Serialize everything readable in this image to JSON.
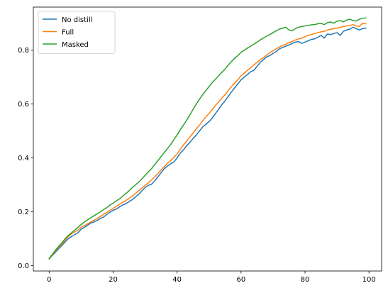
{
  "chart_data": {
    "type": "line",
    "title": "",
    "xlabel": "",
    "ylabel": "",
    "xlim": [
      -4.95,
      103.95
    ],
    "ylim": [
      -0.02,
      0.96
    ],
    "xticks": [
      0,
      20,
      40,
      60,
      80,
      100
    ],
    "xtick_labels": [
      "0",
      "20",
      "40",
      "60",
      "80",
      "100"
    ],
    "yticks": [
      0.0,
      0.2,
      0.4,
      0.6,
      0.8
    ],
    "ytick_labels": [
      "0.0",
      "0.2",
      "0.4",
      "0.6",
      "0.8"
    ],
    "grid": false,
    "legend": {
      "position": "top-left"
    },
    "x": [
      0,
      1,
      2,
      3,
      4,
      5,
      6,
      7,
      8,
      9,
      10,
      11,
      12,
      13,
      14,
      15,
      16,
      17,
      18,
      19,
      20,
      21,
      22,
      23,
      24,
      25,
      26,
      27,
      28,
      29,
      30,
      31,
      32,
      33,
      34,
      35,
      36,
      37,
      38,
      39,
      40,
      41,
      42,
      43,
      44,
      45,
      46,
      47,
      48,
      49,
      50,
      51,
      52,
      53,
      54,
      55,
      56,
      57,
      58,
      59,
      60,
      61,
      62,
      63,
      64,
      65,
      66,
      67,
      68,
      69,
      70,
      71,
      72,
      73,
      74,
      75,
      76,
      77,
      78,
      79,
      80,
      81,
      82,
      83,
      84,
      85,
      86,
      87,
      88,
      89,
      90,
      91,
      92,
      93,
      94,
      95,
      96,
      97,
      98,
      99
    ],
    "series": [
      {
        "name": "No distill",
        "color": "#1f77b4",
        "values": [
          0.025,
          0.038,
          0.05,
          0.063,
          0.075,
          0.088,
          0.1,
          0.108,
          0.115,
          0.122,
          0.135,
          0.142,
          0.15,
          0.158,
          0.162,
          0.168,
          0.175,
          0.18,
          0.19,
          0.198,
          0.205,
          0.21,
          0.218,
          0.225,
          0.23,
          0.238,
          0.245,
          0.255,
          0.265,
          0.278,
          0.29,
          0.298,
          0.302,
          0.315,
          0.33,
          0.345,
          0.36,
          0.37,
          0.378,
          0.385,
          0.4,
          0.418,
          0.43,
          0.445,
          0.458,
          0.472,
          0.485,
          0.5,
          0.515,
          0.525,
          0.535,
          0.548,
          0.565,
          0.58,
          0.598,
          0.612,
          0.628,
          0.645,
          0.66,
          0.675,
          0.69,
          0.7,
          0.71,
          0.72,
          0.725,
          0.74,
          0.755,
          0.765,
          0.775,
          0.78,
          0.788,
          0.795,
          0.805,
          0.81,
          0.815,
          0.82,
          0.825,
          0.83,
          0.832,
          0.825,
          0.83,
          0.835,
          0.84,
          0.842,
          0.848,
          0.855,
          0.845,
          0.86,
          0.858,
          0.862,
          0.865,
          0.855,
          0.87,
          0.875,
          0.878,
          0.885,
          0.88,
          0.875,
          0.88,
          0.882
        ]
      },
      {
        "name": "Full",
        "color": "#ff7f0e",
        "values": [
          0.026,
          0.04,
          0.055,
          0.068,
          0.08,
          0.095,
          0.108,
          0.118,
          0.125,
          0.132,
          0.142,
          0.148,
          0.155,
          0.162,
          0.168,
          0.175,
          0.182,
          0.19,
          0.198,
          0.205,
          0.212,
          0.22,
          0.228,
          0.235,
          0.242,
          0.25,
          0.258,
          0.268,
          0.278,
          0.288,
          0.298,
          0.308,
          0.318,
          0.33,
          0.342,
          0.355,
          0.368,
          0.38,
          0.39,
          0.402,
          0.415,
          0.432,
          0.448,
          0.462,
          0.478,
          0.492,
          0.508,
          0.522,
          0.538,
          0.552,
          0.565,
          0.58,
          0.595,
          0.608,
          0.622,
          0.635,
          0.65,
          0.665,
          0.678,
          0.69,
          0.705,
          0.715,
          0.725,
          0.735,
          0.745,
          0.755,
          0.765,
          0.772,
          0.782,
          0.79,
          0.798,
          0.805,
          0.812,
          0.818,
          0.822,
          0.828,
          0.832,
          0.838,
          0.842,
          0.845,
          0.85,
          0.855,
          0.858,
          0.862,
          0.865,
          0.868,
          0.87,
          0.875,
          0.878,
          0.88,
          0.882,
          0.885,
          0.888,
          0.89,
          0.892,
          0.895,
          0.89,
          0.888,
          0.9,
          0.898
        ]
      },
      {
        "name": "Masked",
        "color": "#2ca02c",
        "values": [
          0.027,
          0.042,
          0.058,
          0.072,
          0.085,
          0.1,
          0.112,
          0.122,
          0.132,
          0.142,
          0.152,
          0.162,
          0.17,
          0.178,
          0.185,
          0.192,
          0.2,
          0.208,
          0.215,
          0.225,
          0.232,
          0.24,
          0.248,
          0.258,
          0.268,
          0.278,
          0.29,
          0.3,
          0.31,
          0.322,
          0.335,
          0.348,
          0.36,
          0.375,
          0.39,
          0.405,
          0.42,
          0.435,
          0.45,
          0.468,
          0.485,
          0.505,
          0.522,
          0.54,
          0.56,
          0.58,
          0.6,
          0.618,
          0.635,
          0.65,
          0.665,
          0.68,
          0.692,
          0.705,
          0.718,
          0.73,
          0.745,
          0.758,
          0.77,
          0.78,
          0.792,
          0.8,
          0.808,
          0.815,
          0.822,
          0.83,
          0.838,
          0.845,
          0.852,
          0.858,
          0.865,
          0.872,
          0.878,
          0.882,
          0.885,
          0.875,
          0.872,
          0.88,
          0.885,
          0.888,
          0.89,
          0.892,
          0.894,
          0.895,
          0.898,
          0.9,
          0.895,
          0.902,
          0.905,
          0.9,
          0.908,
          0.91,
          0.905,
          0.912,
          0.915,
          0.91,
          0.908,
          0.915,
          0.918,
          0.92
        ]
      }
    ]
  }
}
